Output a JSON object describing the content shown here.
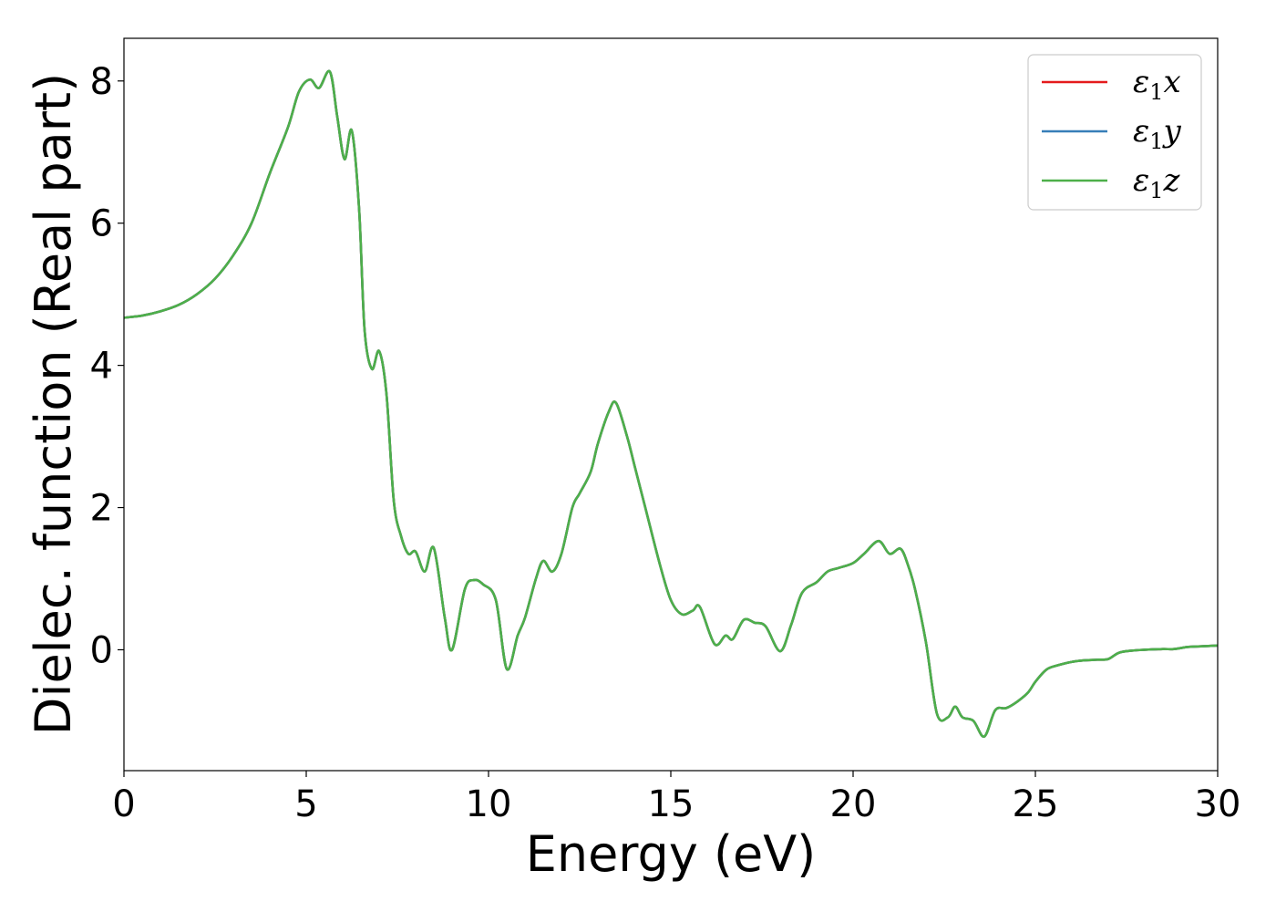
{
  "chart_data": {
    "type": "line",
    "xlabel": "Energy (eV)",
    "ylabel": "Dielec. function (Real part)",
    "xlim": [
      0,
      30
    ],
    "ylim": [
      -1.7,
      8.6
    ],
    "xticks": [
      0,
      5,
      10,
      15,
      20,
      25,
      30
    ],
    "yticks": [
      0,
      2,
      4,
      6,
      8
    ],
    "grid": false,
    "legend_position": "top-right",
    "series": [
      {
        "name": "ε1x",
        "legend": {
          "sym": "ε",
          "sub": "1",
          "axis": "x"
        },
        "color": "#e41a1c",
        "x": [
          0,
          0.5,
          1,
          1.5,
          2,
          2.5,
          3,
          3.5,
          4,
          4.5,
          4.8,
          5.1,
          5.35,
          5.65,
          5.85,
          6.05,
          6.25,
          6.45,
          6.6,
          6.8,
          7.0,
          7.2,
          7.4,
          7.6,
          7.8,
          8.0,
          8.25,
          8.5,
          8.8,
          9.0,
          9.35,
          9.6,
          9.85,
          10.2,
          10.5,
          10.8,
          11.0,
          11.3,
          11.5,
          11.75,
          12.0,
          12.3,
          12.5,
          12.8,
          13.0,
          13.3,
          13.5,
          13.8,
          14.0,
          14.3,
          14.7,
          15.0,
          15.3,
          15.6,
          15.8,
          16.2,
          16.5,
          16.7,
          17.0,
          17.3,
          17.6,
          18.0,
          18.3,
          18.6,
          19.0,
          19.3,
          19.6,
          20.0,
          20.3,
          20.7,
          21.0,
          21.3,
          21.5,
          21.7,
          22.0,
          22.3,
          22.6,
          22.8,
          23.0,
          23.3,
          23.6,
          23.9,
          24.2,
          24.5,
          24.8,
          25.0,
          25.3,
          25.6,
          26.0,
          26.3,
          26.7,
          27.0,
          27.3,
          27.7,
          28.0,
          28.5,
          28.8,
          29.2,
          29.6,
          30.0
        ],
        "y": [
          4.67,
          4.7,
          4.76,
          4.85,
          5.0,
          5.22,
          5.55,
          6.0,
          6.7,
          7.35,
          7.85,
          8.02,
          7.9,
          8.13,
          7.5,
          6.9,
          7.3,
          6.2,
          4.5,
          3.95,
          4.2,
          3.6,
          2.1,
          1.6,
          1.35,
          1.38,
          1.1,
          1.43,
          0.45,
          0.0,
          0.85,
          0.98,
          0.92,
          0.7,
          -0.27,
          0.2,
          0.45,
          1.0,
          1.25,
          1.1,
          1.35,
          2.0,
          2.2,
          2.5,
          2.9,
          3.35,
          3.47,
          3.0,
          2.6,
          2.0,
          1.2,
          0.7,
          0.5,
          0.55,
          0.6,
          0.08,
          0.2,
          0.15,
          0.42,
          0.38,
          0.33,
          -0.02,
          0.35,
          0.8,
          0.95,
          1.1,
          1.15,
          1.22,
          1.35,
          1.53,
          1.35,
          1.42,
          1.2,
          0.85,
          0.1,
          -0.9,
          -0.95,
          -0.8,
          -0.95,
          -1.0,
          -1.22,
          -0.85,
          -0.82,
          -0.73,
          -0.6,
          -0.45,
          -0.28,
          -0.22,
          -0.17,
          -0.15,
          -0.14,
          -0.13,
          -0.04,
          -0.01,
          0.0,
          0.01,
          0.01,
          0.04,
          0.05,
          0.06
        ]
      },
      {
        "name": "ε1y",
        "legend": {
          "sym": "ε",
          "sub": "1",
          "axis": "y"
        },
        "color": "#377eb8",
        "x": [
          0,
          0.5,
          1,
          1.5,
          2,
          2.5,
          3,
          3.5,
          4,
          4.5,
          4.8,
          5.1,
          5.35,
          5.65,
          5.85,
          6.05,
          6.25,
          6.45,
          6.6,
          6.8,
          7.0,
          7.2,
          7.4,
          7.6,
          7.8,
          8.0,
          8.25,
          8.5,
          8.8,
          9.0,
          9.35,
          9.6,
          9.85,
          10.2,
          10.5,
          10.8,
          11.0,
          11.3,
          11.5,
          11.75,
          12.0,
          12.3,
          12.5,
          12.8,
          13.0,
          13.3,
          13.5,
          13.8,
          14.0,
          14.3,
          14.7,
          15.0,
          15.3,
          15.6,
          15.8,
          16.2,
          16.5,
          16.7,
          17.0,
          17.3,
          17.6,
          18.0,
          18.3,
          18.6,
          19.0,
          19.3,
          19.6,
          20.0,
          20.3,
          20.7,
          21.0,
          21.3,
          21.5,
          21.7,
          22.0,
          22.3,
          22.6,
          22.8,
          23.0,
          23.3,
          23.6,
          23.9,
          24.2,
          24.5,
          24.8,
          25.0,
          25.3,
          25.6,
          26.0,
          26.3,
          26.7,
          27.0,
          27.3,
          27.7,
          28.0,
          28.5,
          28.8,
          29.2,
          29.6,
          30.0
        ],
        "y": [
          4.67,
          4.7,
          4.76,
          4.85,
          5.0,
          5.22,
          5.55,
          6.0,
          6.7,
          7.35,
          7.85,
          8.02,
          7.9,
          8.13,
          7.5,
          6.9,
          7.3,
          6.2,
          4.5,
          3.95,
          4.2,
          3.6,
          2.1,
          1.6,
          1.35,
          1.38,
          1.1,
          1.43,
          0.45,
          0.0,
          0.85,
          0.98,
          0.92,
          0.7,
          -0.27,
          0.2,
          0.45,
          1.0,
          1.25,
          1.1,
          1.35,
          2.0,
          2.2,
          2.5,
          2.9,
          3.35,
          3.47,
          3.0,
          2.6,
          2.0,
          1.2,
          0.7,
          0.5,
          0.55,
          0.6,
          0.08,
          0.2,
          0.15,
          0.42,
          0.38,
          0.33,
          -0.02,
          0.35,
          0.8,
          0.95,
          1.1,
          1.15,
          1.22,
          1.35,
          1.53,
          1.35,
          1.42,
          1.2,
          0.85,
          0.1,
          -0.9,
          -0.95,
          -0.8,
          -0.95,
          -1.0,
          -1.22,
          -0.85,
          -0.82,
          -0.73,
          -0.6,
          -0.45,
          -0.28,
          -0.22,
          -0.17,
          -0.15,
          -0.14,
          -0.13,
          -0.04,
          -0.01,
          0.0,
          0.01,
          0.01,
          0.04,
          0.05,
          0.06
        ]
      },
      {
        "name": "ε1z",
        "legend": {
          "sym": "ε",
          "sub": "1",
          "axis": "z"
        },
        "color": "#4daf4a",
        "x": [
          0,
          0.5,
          1,
          1.5,
          2,
          2.5,
          3,
          3.5,
          4,
          4.5,
          4.8,
          5.1,
          5.35,
          5.65,
          5.85,
          6.05,
          6.25,
          6.45,
          6.6,
          6.8,
          7.0,
          7.2,
          7.4,
          7.6,
          7.8,
          8.0,
          8.25,
          8.5,
          8.8,
          9.0,
          9.35,
          9.6,
          9.85,
          10.2,
          10.5,
          10.8,
          11.0,
          11.3,
          11.5,
          11.75,
          12.0,
          12.3,
          12.5,
          12.8,
          13.0,
          13.3,
          13.5,
          13.8,
          14.0,
          14.3,
          14.7,
          15.0,
          15.3,
          15.6,
          15.8,
          16.2,
          16.5,
          16.7,
          17.0,
          17.3,
          17.6,
          18.0,
          18.3,
          18.6,
          19.0,
          19.3,
          19.6,
          20.0,
          20.3,
          20.7,
          21.0,
          21.3,
          21.5,
          21.7,
          22.0,
          22.3,
          22.6,
          22.8,
          23.0,
          23.3,
          23.6,
          23.9,
          24.2,
          24.5,
          24.8,
          25.0,
          25.3,
          25.6,
          26.0,
          26.3,
          26.7,
          27.0,
          27.3,
          27.7,
          28.0,
          28.5,
          28.8,
          29.2,
          29.6,
          30.0
        ],
        "y": [
          4.67,
          4.7,
          4.76,
          4.85,
          5.0,
          5.22,
          5.55,
          6.0,
          6.7,
          7.35,
          7.85,
          8.02,
          7.9,
          8.13,
          7.5,
          6.9,
          7.3,
          6.2,
          4.5,
          3.95,
          4.2,
          3.6,
          2.1,
          1.6,
          1.35,
          1.38,
          1.1,
          1.43,
          0.45,
          0.0,
          0.85,
          0.98,
          0.92,
          0.7,
          -0.27,
          0.2,
          0.45,
          1.0,
          1.25,
          1.1,
          1.35,
          2.0,
          2.2,
          2.5,
          2.9,
          3.35,
          3.47,
          3.0,
          2.6,
          2.0,
          1.2,
          0.7,
          0.5,
          0.55,
          0.6,
          0.08,
          0.2,
          0.15,
          0.42,
          0.38,
          0.33,
          -0.02,
          0.35,
          0.8,
          0.95,
          1.1,
          1.15,
          1.22,
          1.35,
          1.53,
          1.35,
          1.42,
          1.2,
          0.85,
          0.1,
          -0.9,
          -0.95,
          -0.8,
          -0.95,
          -1.0,
          -1.22,
          -0.85,
          -0.82,
          -0.73,
          -0.6,
          -0.45,
          -0.28,
          -0.22,
          -0.17,
          -0.15,
          -0.14,
          -0.13,
          -0.04,
          -0.01,
          0.0,
          0.01,
          0.01,
          0.04,
          0.05,
          0.06
        ]
      }
    ]
  }
}
